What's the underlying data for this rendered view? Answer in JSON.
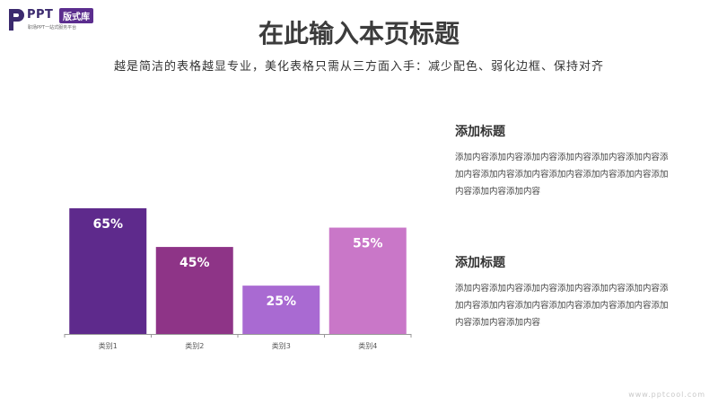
{
  "logo": {
    "brand": "PPT",
    "badge": "版式库",
    "tagline": "职场PPT一站式服务平台"
  },
  "header": {
    "title": "在此输入本页标题",
    "subtitle": "越是简洁的表格越显专业，美化表格只需从三方面入手：减少配色、弱化边框、保持对齐"
  },
  "chart_data": {
    "type": "bar",
    "categories": [
      "类别1",
      "类别2",
      "类别3",
      "类别4"
    ],
    "values": [
      65,
      45,
      25,
      55
    ],
    "data_labels": [
      "65%",
      "45%",
      "25%",
      "55%"
    ],
    "colors": [
      "#5e2a8c",
      "#8e3487",
      "#a96ad2",
      "#c977c8"
    ],
    "ylim": [
      0,
      70
    ],
    "grid": false,
    "legend": "none"
  },
  "blocks": [
    {
      "title": "添加标题",
      "text": "添加内容添加内容添加内容添加内容添加内容添加内容添加内容添加内容添加内容添加内容添加内容添加内容添加内容添加内容添加内容"
    },
    {
      "title": "添加标题",
      "text": "添加内容添加内容添加内容添加内容添加内容添加内容添加内容添加内容添加内容添加内容添加内容添加内容添加内容添加内容添加内容"
    }
  ],
  "watermark": "www.pptcool.com"
}
